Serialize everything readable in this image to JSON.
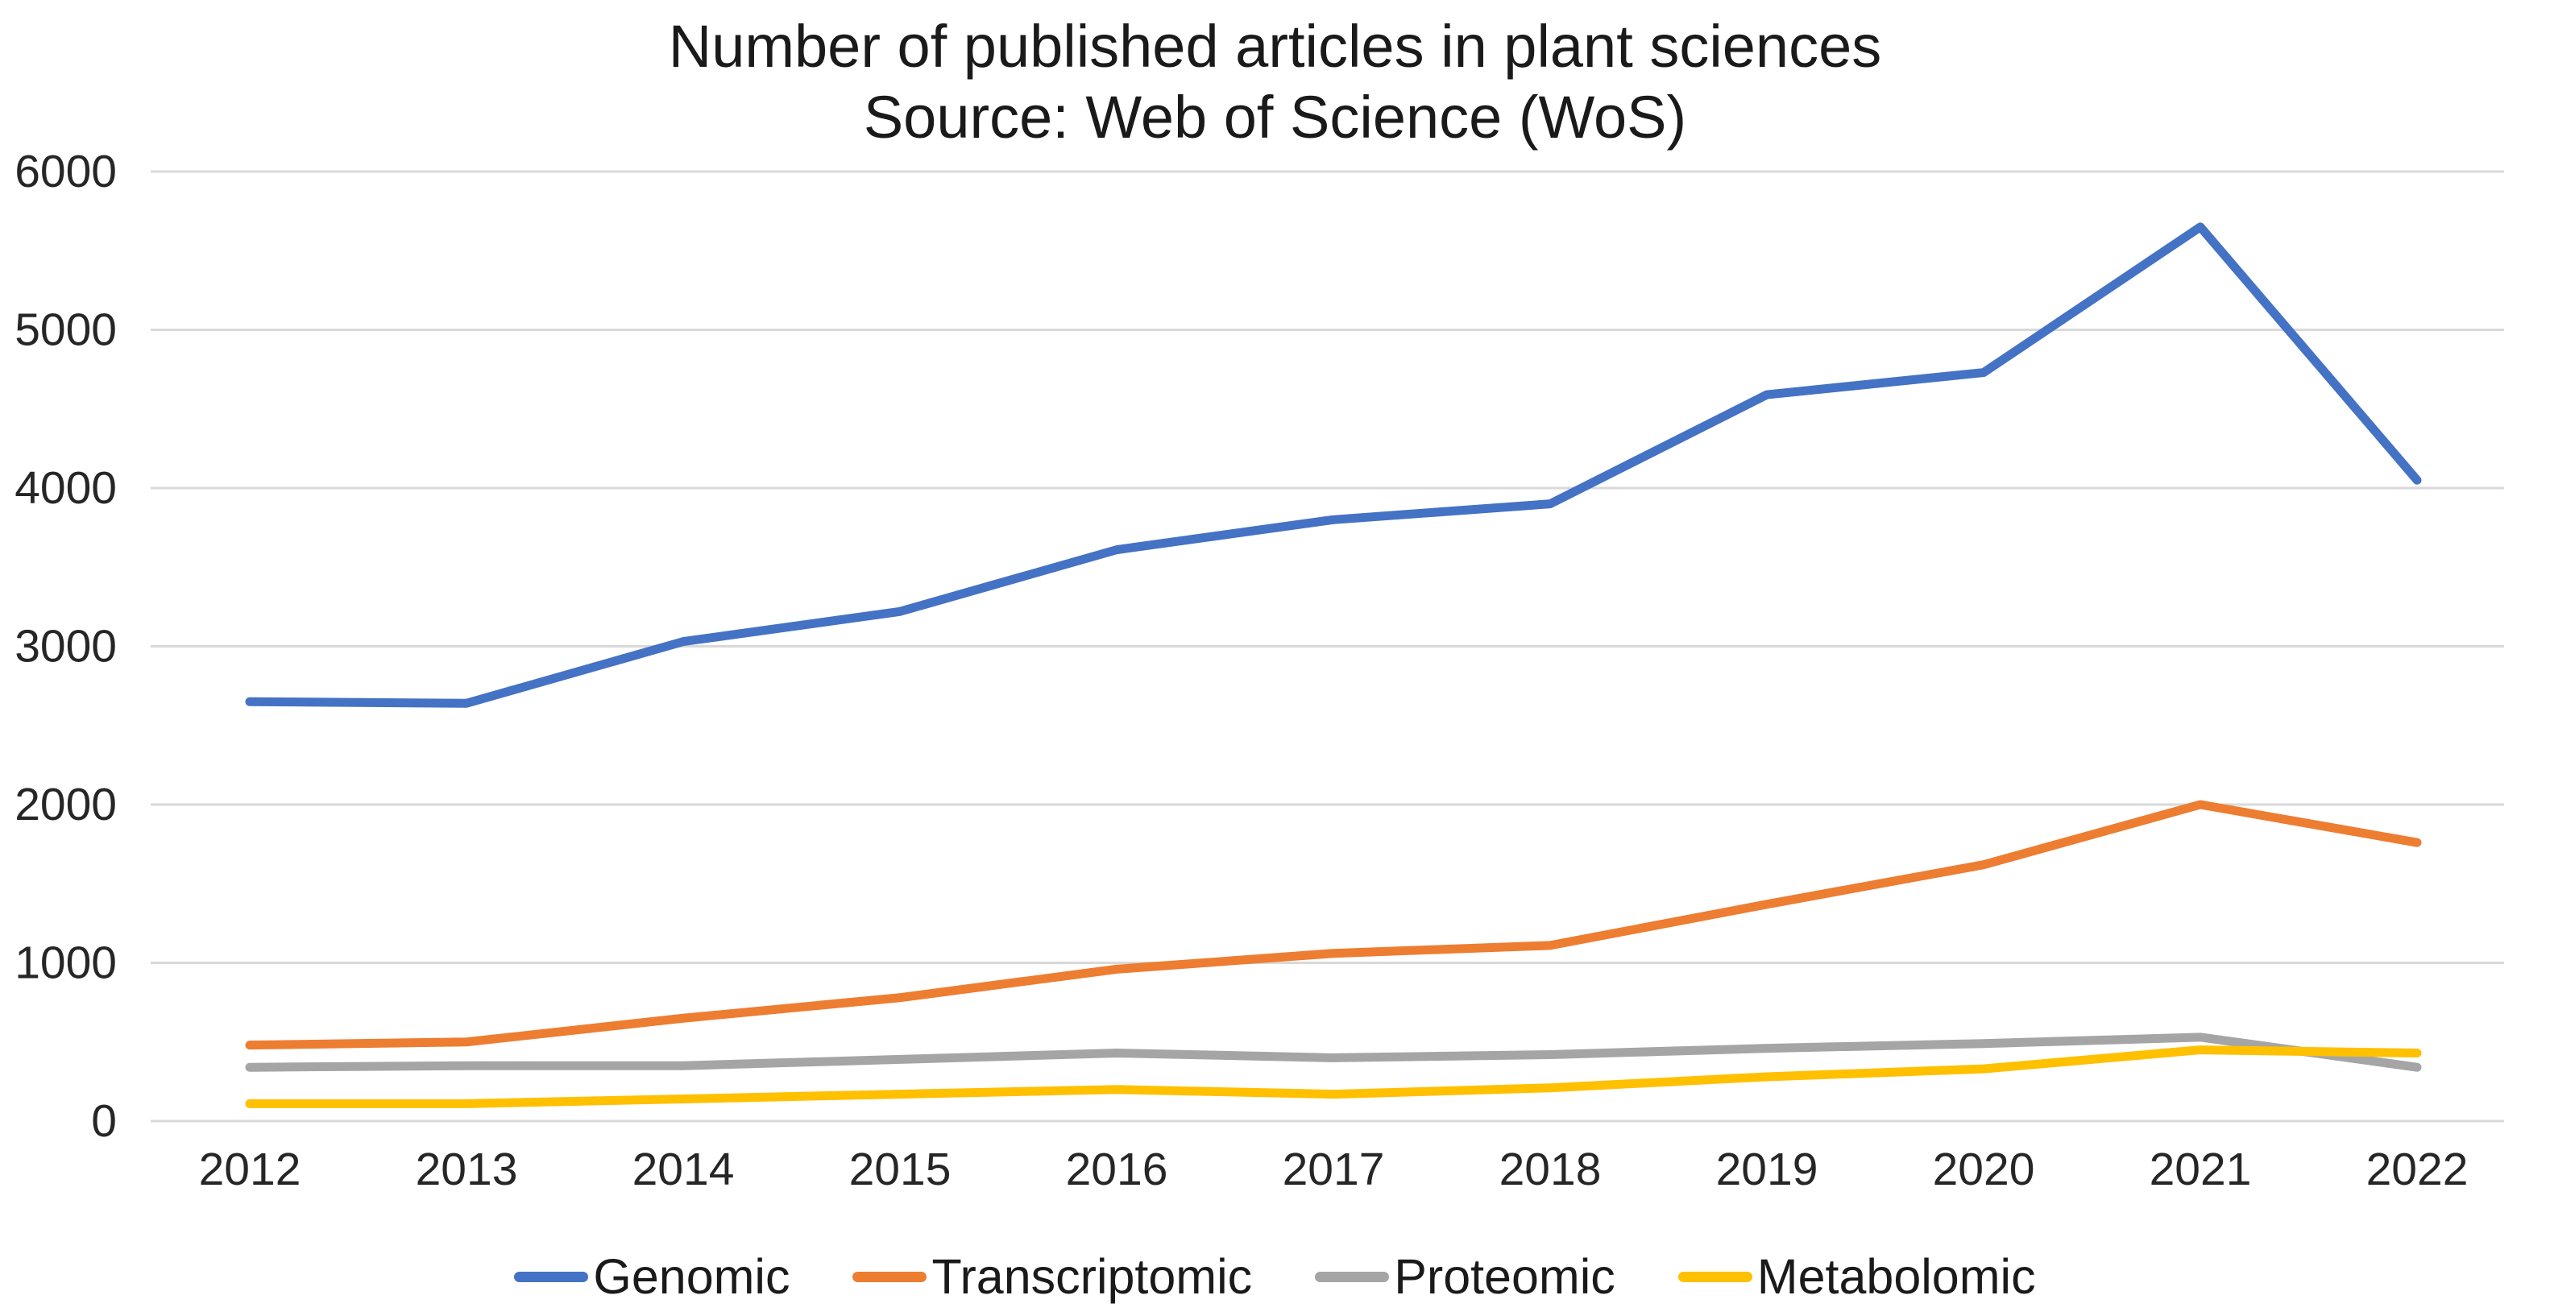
{
  "title": "Number of published articles in plant sciences",
  "subtitle": "Source: Web of Science (WoS)",
  "chart_data": {
    "type": "line",
    "title": "Number of published articles in plant sciences",
    "subtitle": "Source: Web of Science (WoS)",
    "x": [
      "2012",
      "2013",
      "2014",
      "2015",
      "2016",
      "2017",
      "2018",
      "2019",
      "2020",
      "2021",
      "2022"
    ],
    "series": [
      {
        "name": "Genomic",
        "color": "#4472C4",
        "values": [
          2650,
          2640,
          3030,
          3220,
          3610,
          3800,
          3900,
          4590,
          4730,
          5650,
          4050
        ]
      },
      {
        "name": "Transcriptomic",
        "color": "#ED7D31",
        "values": [
          480,
          500,
          650,
          780,
          960,
          1060,
          1110,
          1370,
          1620,
          2000,
          1760
        ]
      },
      {
        "name": "Proteomic",
        "color": "#A5A5A5",
        "values": [
          340,
          350,
          350,
          390,
          430,
          400,
          420,
          460,
          490,
          530,
          340
        ]
      },
      {
        "name": "Metabolomic",
        "color": "#FFC000",
        "values": [
          110,
          110,
          140,
          170,
          200,
          170,
          210,
          280,
          330,
          450,
          430
        ]
      }
    ],
    "y_ticks": [
      "0",
      "1000",
      "2000",
      "3000",
      "4000",
      "5000",
      "6000"
    ],
    "ylim": [
      0,
      6000
    ],
    "xlabel": "",
    "ylabel": "",
    "grid": "horizontal",
    "legend_position": "bottom",
    "colors": {
      "gridline": "#D9D9D9",
      "axis_text": "#262626",
      "title_text": "#1a1a1a",
      "background": "#ffffff"
    }
  }
}
